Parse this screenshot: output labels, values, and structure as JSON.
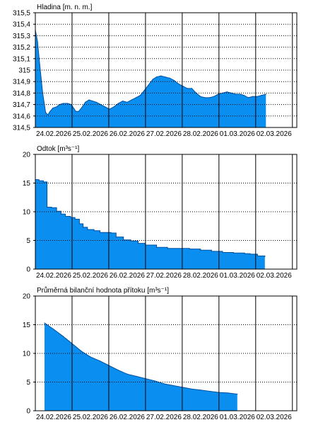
{
  "colors": {
    "fill": "#0a8ff0",
    "stroke": "#0050a0",
    "grid_minor": "#000000",
    "axis": "#000000"
  },
  "chart_data": [
    {
      "type": "area",
      "title": "Hladina [m. n. m.]",
      "ylim": [
        314.5,
        315.5
      ],
      "yticks": [
        314.5,
        314.6,
        314.7,
        314.8,
        314.9,
        315.0,
        315.1,
        315.2,
        315.3,
        315.4,
        315.5
      ],
      "ytick_labels": [
        "314,5",
        "314,6",
        "314,7",
        "314,8",
        "314,9",
        "315",
        "315,1",
        "315,2",
        "315,3",
        "315,4",
        "315,5"
      ],
      "xlim": [
        0,
        7.12
      ],
      "xtick_labels": [
        "24.02.2026",
        "25.02.2026",
        "26.02.2026",
        "27.02.2026",
        "28.02.2026",
        "01.03.2026",
        "02.03.2026"
      ],
      "grid": "dotted-horizontal",
      "x": [
        0,
        0.06,
        0.12,
        0.2,
        0.28,
        0.34,
        0.4,
        0.48,
        0.58,
        0.66,
        0.76,
        0.88,
        0.98,
        1.1,
        1.18,
        1.28,
        1.36,
        1.46,
        1.56,
        1.66,
        1.78,
        1.9,
        2.02,
        2.14,
        2.26,
        2.38,
        2.5,
        2.62,
        2.74,
        2.86,
        2.96,
        3.08,
        3.2,
        3.3,
        3.42,
        3.54,
        3.66,
        3.78,
        3.9,
        4.02,
        4.14,
        4.26,
        4.38,
        4.5,
        4.62,
        4.74,
        4.86,
        4.98,
        5.1,
        5.22,
        5.34,
        5.46,
        5.58,
        5.68,
        5.8,
        5.92,
        6.04,
        6.16,
        6.28
      ],
      "values": [
        315.35,
        315.25,
        315.05,
        314.8,
        314.63,
        314.61,
        314.64,
        314.67,
        314.68,
        314.7,
        314.71,
        314.71,
        314.7,
        314.64,
        314.64,
        314.68,
        314.72,
        314.74,
        314.73,
        314.72,
        314.7,
        314.68,
        314.66,
        314.68,
        314.71,
        314.73,
        314.72,
        314.74,
        314.76,
        314.78,
        314.82,
        314.87,
        314.92,
        314.94,
        314.95,
        314.94,
        314.93,
        314.91,
        314.88,
        314.86,
        314.84,
        314.84,
        314.8,
        314.77,
        314.76,
        314.76,
        314.77,
        314.79,
        314.8,
        314.81,
        314.8,
        314.79,
        314.79,
        314.78,
        314.76,
        314.77,
        314.77,
        314.78,
        314.79
      ]
    },
    {
      "type": "area",
      "title": "Odtok [m³s⁻¹]",
      "ylim": [
        0,
        20
      ],
      "yticks": [
        0,
        5,
        10,
        15,
        20
      ],
      "ytick_labels": [
        "0",
        "5",
        "10",
        "15",
        "20"
      ],
      "xlim": [
        0,
        7.12
      ],
      "xtick_labels": [
        "24.02.2026",
        "25.02.2026",
        "26.02.2026",
        "27.02.2026",
        "28.02.2026",
        "01.03.2026",
        "02.03.2026"
      ],
      "grid": "dotted-horizontal",
      "step": true,
      "x": [
        0,
        0.1,
        0.22,
        0.32,
        0.44,
        0.58,
        0.7,
        0.82,
        0.96,
        1.08,
        1.2,
        1.3,
        1.42,
        1.6,
        1.76,
        2.06,
        2.2,
        2.4,
        2.6,
        2.8,
        3.0,
        3.3,
        3.6,
        4.0,
        4.2,
        4.5,
        4.8,
        5.1,
        5.4,
        5.7,
        5.85,
        6.0,
        6.05,
        6.25
      ],
      "values": [
        15.6,
        15.4,
        15.2,
        10.8,
        10.7,
        10.1,
        9.6,
        9.2,
        9.0,
        8.7,
        7.9,
        7.3,
        6.9,
        6.7,
        6.4,
        6.3,
        5.6,
        5.1,
        4.9,
        4.5,
        4.2,
        3.8,
        3.6,
        3.6,
        3.5,
        3.3,
        3.1,
        2.9,
        2.8,
        2.7,
        2.6,
        2.6,
        2.3,
        2.2
      ]
    },
    {
      "type": "area",
      "title": "Průměrná bilanční hodnota přítoku [m³s⁻¹]",
      "ylim": [
        0,
        20
      ],
      "yticks": [
        0,
        5,
        10,
        15,
        20
      ],
      "ytick_labels": [
        "0",
        "5",
        "10",
        "15",
        "20"
      ],
      "xlim": [
        0,
        7.12
      ],
      "xtick_labels": [
        "24.02.2026",
        "25.02.2026",
        "26.02.2026",
        "27.02.2026",
        "28.02.2026",
        "01.03.2026",
        "02.03.2026"
      ],
      "grid": "dotted-horizontal",
      "x": [
        0.25,
        0.5,
        0.75,
        1.0,
        1.25,
        1.5,
        1.75,
        2.0,
        2.25,
        2.5,
        2.75,
        3.0,
        3.25,
        3.5,
        3.75,
        4.0,
        4.25,
        4.5,
        4.75,
        5.0,
        5.25,
        5.5
      ],
      "values": [
        15.3,
        14.2,
        13.0,
        11.7,
        10.4,
        9.4,
        8.7,
        7.9,
        7.1,
        6.4,
        6.0,
        5.6,
        5.2,
        4.7,
        4.4,
        4.1,
        3.8,
        3.6,
        3.4,
        3.2,
        3.1,
        2.9
      ]
    }
  ]
}
